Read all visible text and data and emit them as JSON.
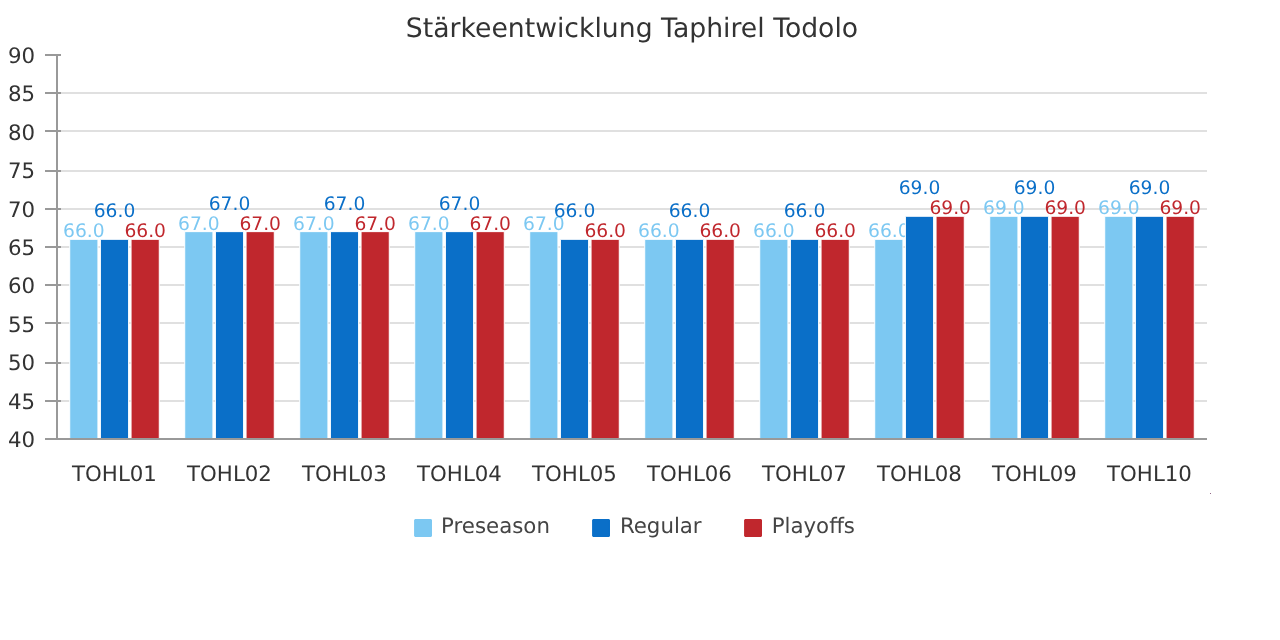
{
  "chart_data": {
    "type": "bar",
    "title": "Stärkeentwicklung Taphirel Todolo",
    "categories": [
      "TOHL01",
      "TOHL02",
      "TOHL03",
      "TOHL04",
      "TOHL05",
      "TOHL06",
      "TOHL07",
      "TOHL08",
      "TOHL09",
      "TOHL10"
    ],
    "series": [
      {
        "name": "Preseason",
        "color": "#7cc8f2",
        "values": [
          66,
          67,
          67,
          67,
          67,
          66,
          66,
          66,
          69,
          69
        ],
        "value_labels": [
          "66.0",
          "67.0",
          "67.0",
          "67.0",
          "67.0",
          "66.0",
          "66.0",
          "66.0",
          "69.0",
          "69.0"
        ]
      },
      {
        "name": "Regular",
        "color": "#0a6fc8",
        "values": [
          66,
          67,
          67,
          67,
          66,
          66,
          66,
          69,
          69,
          69
        ],
        "value_labels": [
          "66.0",
          "67.0",
          "67.0",
          "67.0",
          "66.0",
          "66.0",
          "66.0",
          "69.0",
          "69.0",
          "69.0"
        ]
      },
      {
        "name": "Playoffs",
        "color": "#c0272d",
        "values": [
          66,
          67,
          67,
          67,
          66,
          66,
          66,
          69,
          69,
          69
        ],
        "value_labels": [
          "66.0",
          "67.0",
          "67.0",
          "67.0",
          "66.0",
          "66.0",
          "66.0",
          "69.0",
          "69.0",
          "69.0"
        ]
      }
    ],
    "ylim": [
      40,
      90
    ],
    "yticks": [
      40,
      45,
      50,
      55,
      60,
      65,
      70,
      75,
      80,
      85,
      90
    ],
    "grid": "y",
    "legend": "bottom"
  }
}
